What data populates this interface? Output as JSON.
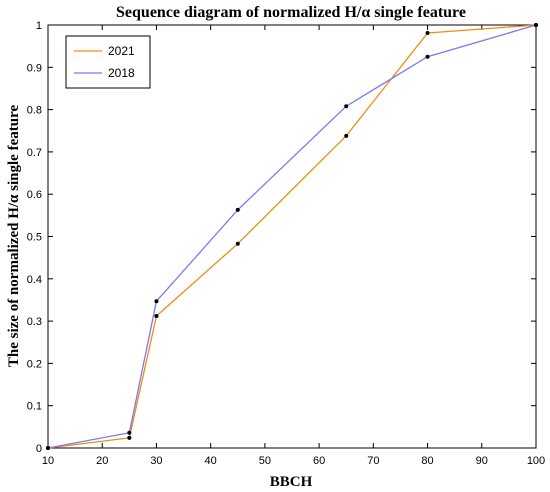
{
  "chart_data": {
    "type": "line",
    "title": "Sequence diagram of normalized H/α single feature",
    "xlabel": "BBCH",
    "ylabel": "The size of normalized H/α single feature",
    "xlim": [
      10,
      100
    ],
    "ylim": [
      0,
      1
    ],
    "xticks": [
      10,
      20,
      30,
      40,
      50,
      60,
      70,
      80,
      90,
      100
    ],
    "yticks": [
      0,
      0.1,
      0.2,
      0.3,
      0.4,
      0.5,
      0.6,
      0.7,
      0.8,
      0.9,
      1
    ],
    "xtick_labels": [
      "10",
      "20",
      "30",
      "40",
      "50",
      "60",
      "70",
      "80",
      "90",
      "100"
    ],
    "ytick_labels": [
      "0",
      "0.1",
      "0.2",
      "0.3",
      "0.4",
      "0.5",
      "0.6",
      "0.7",
      "0.8",
      "0.9",
      "1"
    ],
    "grid": false,
    "legend_position": "top-left",
    "series": [
      {
        "name": "2021",
        "color": "#f08c14",
        "x": [
          10,
          25,
          25,
          30,
          45,
          65,
          80,
          100
        ],
        "y": [
          0,
          0.024,
          0.024,
          0.312,
          0.483,
          0.738,
          0.981,
          1.0
        ],
        "markers": [
          [
            10,
            0
          ],
          [
            25,
            0.024
          ],
          [
            30,
            0.312
          ],
          [
            45,
            0.483
          ],
          [
            65,
            0.738
          ],
          [
            80,
            0.981
          ],
          [
            100,
            1.0
          ]
        ]
      },
      {
        "name": "2018",
        "color": "#7b7bf0",
        "x": [
          10,
          25,
          30,
          45,
          65,
          80,
          100
        ],
        "y": [
          0,
          0.036,
          0.347,
          0.563,
          0.808,
          0.925,
          1.0
        ],
        "markers": [
          [
            10,
            0
          ],
          [
            25,
            0.036
          ],
          [
            30,
            0.347
          ],
          [
            45,
            0.563
          ],
          [
            65,
            0.808
          ],
          [
            80,
            0.925
          ],
          [
            100,
            1.0
          ]
        ]
      }
    ]
  }
}
